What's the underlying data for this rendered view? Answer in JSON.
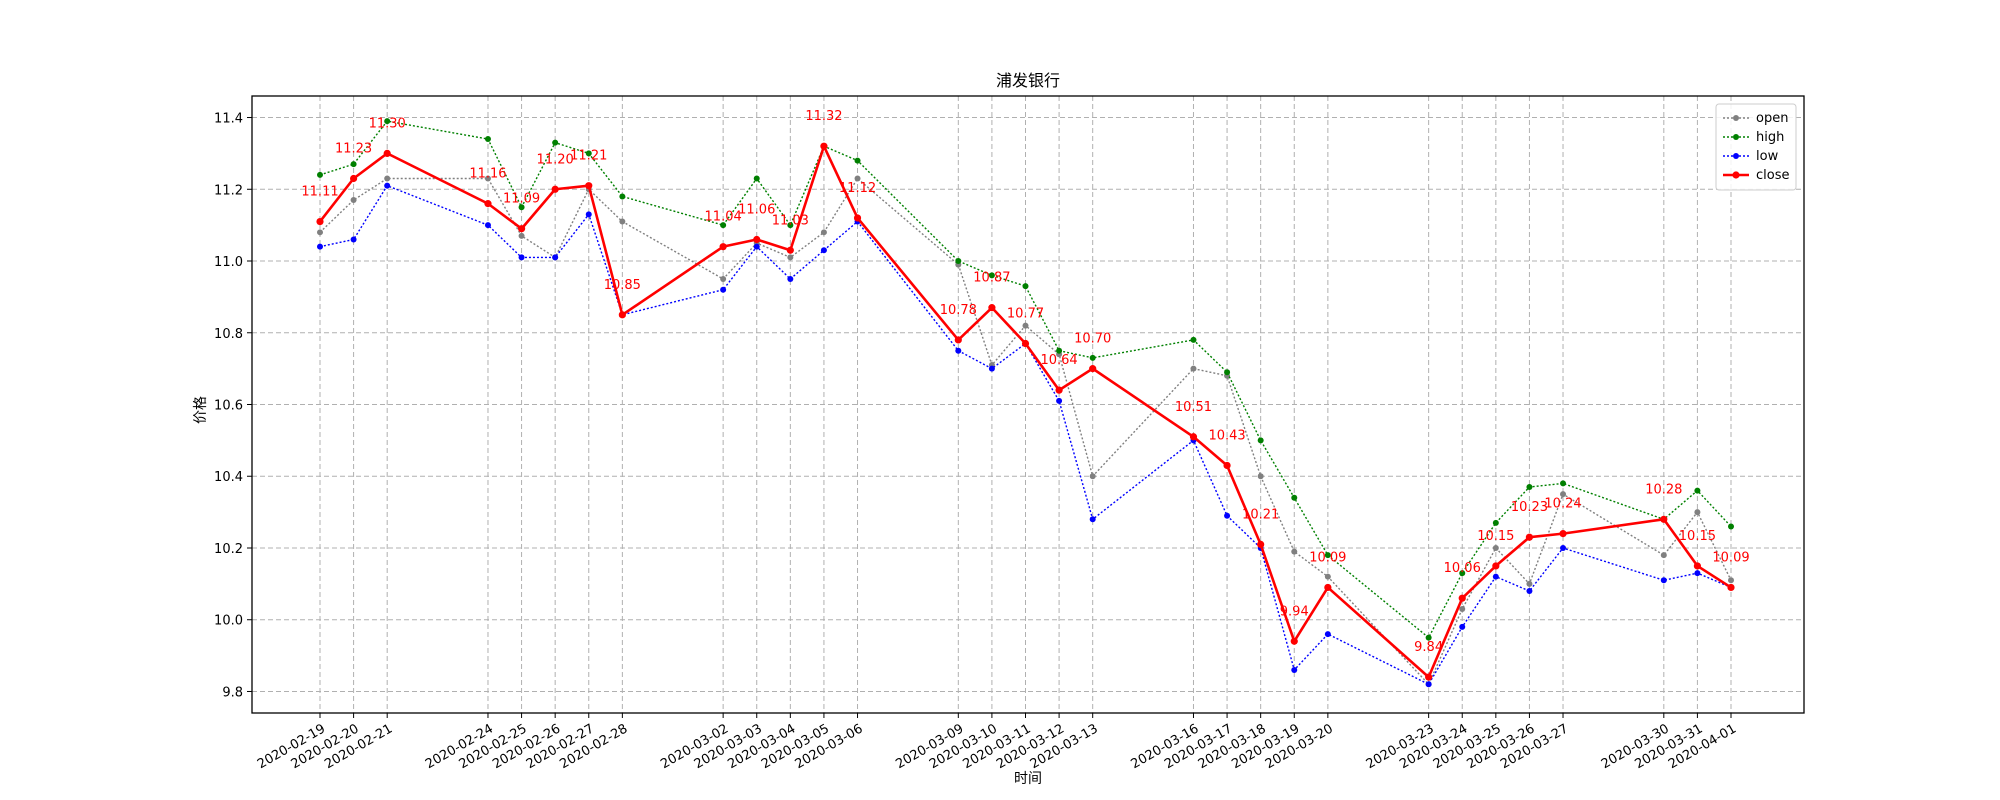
{
  "chart_data": {
    "type": "line",
    "title": "浦发银行",
    "xlabel": "时间",
    "ylabel": "价格",
    "ylim": [
      9.74,
      11.46
    ],
    "yticks": [
      9.8,
      10.0,
      10.2,
      10.4,
      10.6,
      10.8,
      11.0,
      11.2,
      11.4
    ],
    "ytick_labels": [
      "9.8",
      "10.0",
      "10.2",
      "10.4",
      "10.6",
      "10.8",
      "11.0",
      "11.2",
      "11.4"
    ],
    "grid": true,
    "legend_position": "top-right",
    "x": [
      "2020-02-19",
      "2020-02-20",
      "2020-02-21",
      "2020-02-24",
      "2020-02-25",
      "2020-02-26",
      "2020-02-27",
      "2020-02-28",
      "2020-03-02",
      "2020-03-03",
      "2020-03-04",
      "2020-03-05",
      "2020-03-06",
      "2020-03-09",
      "2020-03-10",
      "2020-03-11",
      "2020-03-12",
      "2020-03-13",
      "2020-03-16",
      "2020-03-17",
      "2020-03-18",
      "2020-03-19",
      "2020-03-20",
      "2020-03-23",
      "2020-03-24",
      "2020-03-25",
      "2020-03-26",
      "2020-03-27",
      "2020-03-30",
      "2020-03-31",
      "2020-04-01"
    ],
    "series": [
      {
        "name": "open",
        "color": "#808080",
        "style": "dotted",
        "values": [
          11.08,
          11.17,
          11.23,
          11.23,
          11.07,
          11.01,
          11.2,
          11.11,
          10.95,
          11.05,
          11.01,
          11.08,
          11.23,
          10.99,
          10.71,
          10.82,
          10.74,
          10.4,
          10.7,
          10.68,
          10.4,
          10.19,
          10.12,
          9.82,
          10.03,
          10.2,
          10.1,
          10.35,
          10.18,
          10.3,
          10.11
        ]
      },
      {
        "name": "high",
        "color": "#008000",
        "style": "dotted",
        "values": [
          11.24,
          11.27,
          11.39,
          11.34,
          11.15,
          11.33,
          11.3,
          11.18,
          11.1,
          11.23,
          11.1,
          11.32,
          11.28,
          11.0,
          10.96,
          10.93,
          10.75,
          10.73,
          10.78,
          10.69,
          10.5,
          10.34,
          10.18,
          9.95,
          10.13,
          10.27,
          10.37,
          10.38,
          10.28,
          10.36,
          10.26
        ]
      },
      {
        "name": "low",
        "color": "#0000ff",
        "style": "dotted",
        "values": [
          11.04,
          11.06,
          11.21,
          11.1,
          11.01,
          11.01,
          11.13,
          10.85,
          10.92,
          11.04,
          10.95,
          11.03,
          11.11,
          10.75,
          10.7,
          10.77,
          10.61,
          10.28,
          10.5,
          10.29,
          10.2,
          9.86,
          9.96,
          9.82,
          9.98,
          10.12,
          10.08,
          10.2,
          10.11,
          10.13,
          10.09
        ]
      },
      {
        "name": "close",
        "color": "#ff0000",
        "style": "solid",
        "values": [
          11.11,
          11.23,
          11.3,
          11.16,
          11.09,
          11.2,
          11.21,
          10.85,
          11.04,
          11.06,
          11.03,
          11.32,
          11.12,
          10.78,
          10.87,
          10.77,
          10.64,
          10.7,
          10.51,
          10.43,
          10.21,
          9.94,
          10.09,
          9.84,
          10.06,
          10.15,
          10.23,
          10.24,
          10.28,
          10.15,
          10.09
        ]
      }
    ],
    "annotations": [
      "11.11",
      "11.23",
      "11.30",
      "11.16",
      "11.09",
      "11.20",
      "11.21",
      "10.85",
      "11.04",
      "11.06",
      "11.03",
      "11.32",
      "11.12",
      "10.78",
      "10.87",
      "10.77",
      "10.64",
      "10.70",
      "10.51",
      "10.43",
      "10.21",
      "9.94",
      "10.09",
      "9.84",
      "10.06",
      "10.15",
      "10.23",
      "10.24",
      "10.28",
      "10.15",
      "10.09"
    ]
  }
}
